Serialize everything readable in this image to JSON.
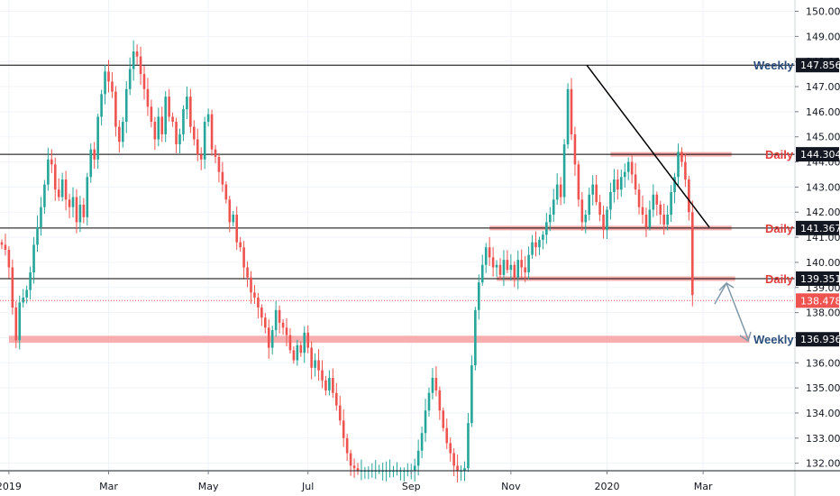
{
  "colors": {
    "up": "#26a69a",
    "down": "#ef5350",
    "zone": "#f7a0a0",
    "line": "#000000",
    "arrow": "#7f98a8",
    "weekly_text": "#2a4d7a",
    "daily_text": "#e23b3b",
    "grid": "#f0f3fa",
    "current": "#ef5350"
  },
  "chart_data": {
    "type": "candlestick",
    "title": "",
    "ylabel": "",
    "xlabel": "",
    "ylim": [
      131.7,
      150.45
    ],
    "grid": true,
    "y_ticks": [
      "132.000",
      "133.000",
      "134.000",
      "135.000",
      "136.000",
      "137.000",
      "138.000",
      "139.000",
      "140.000",
      "141.000",
      "142.000",
      "143.000",
      "144.000",
      "145.000",
      "146.000",
      "147.000",
      "148.000",
      "149.000",
      "150.000"
    ],
    "x_ticks": [
      {
        "label": "2019",
        "index": 2
      },
      {
        "label": "Mar",
        "index": 30
      },
      {
        "label": "May",
        "index": 58
      },
      {
        "label": "Jul",
        "index": 86
      },
      {
        "label": "Sep",
        "index": 115
      },
      {
        "label": "Nov",
        "index": 143
      },
      {
        "label": "2020",
        "index": 170
      },
      {
        "label": "Mar",
        "index": 197
      }
    ],
    "closes": [
      140.7,
      140.5,
      139.8,
      138.2,
      136.9,
      138.4,
      138.6,
      138.9,
      139.6,
      140.7,
      141.4,
      142.2,
      143.1,
      144.1,
      143.9,
      142.9,
      142.6,
      143.3,
      142.5,
      142.2,
      142.6,
      141.6,
      142.3,
      141.8,
      143.4,
      144.5,
      144.1,
      145.8,
      146.7,
      147.6,
      147.2,
      146.8,
      145.4,
      144.8,
      145.6,
      146.9,
      147.7,
      148.4,
      148.2,
      147.5,
      146.9,
      146.2,
      145.6,
      144.9,
      145.8,
      145.1,
      146.6,
      145.8,
      145.6,
      144.7,
      145.1,
      146.1,
      146.6,
      145.4,
      144.9,
      144.3,
      144.1,
      145.6,
      145.9,
      144.5,
      144.2,
      143.6,
      143.1,
      142.5,
      141.6,
      141.9,
      140.8,
      140.6,
      139.8,
      139.4,
      138.8,
      138.6,
      138.2,
      137.8,
      137.4,
      136.6,
      137.3,
      138.1,
      137.6,
      137.4,
      137.1,
      136.5,
      136.1,
      136.7,
      136.4,
      137.2,
      136.6,
      135.8,
      136.1,
      135.7,
      135.3,
      134.9,
      135.4,
      134.8,
      134.3,
      133.7,
      133.0,
      132.4,
      131.9,
      131.8,
      131.7,
      131.7,
      131.7,
      131.7,
      131.7,
      131.7,
      131.7,
      131.7,
      131.7,
      131.7,
      131.7,
      131.7,
      131.7,
      131.7,
      131.7,
      131.7,
      131.9,
      132.5,
      133.2,
      134.1,
      134.8,
      135.4,
      134.9,
      134.1,
      133.4,
      132.8,
      132.4,
      131.9,
      131.7,
      131.7,
      131.8,
      133.6,
      135.9,
      138.1,
      139.2,
      139.9,
      140.6,
      140.2,
      139.8,
      139.9,
      139.5,
      140.1,
      139.7,
      139.9,
      139.4,
      140.1,
      139.8,
      139.6,
      140.3,
      140.8,
      140.6,
      140.9,
      141.1,
      141.6,
      141.9,
      142.5,
      143.1,
      142.6,
      144.7,
      146.9,
      145.1,
      143.9,
      142.5,
      141.6,
      141.9,
      142.7,
      143.1,
      142.4,
      141.9,
      141.3,
      142.1,
      142.8,
      143.3,
      142.9,
      143.4,
      143.6,
      144.0,
      143.5,
      142.9,
      142.2,
      141.9,
      141.4,
      142.1,
      142.7,
      142.3,
      141.9,
      141.5,
      141.9,
      142.8,
      143.4,
      144.4,
      144.0,
      143.3,
      142.0,
      138.7
    ]
  },
  "lines": {
    "weekly_top": {
      "value": 147.856,
      "label": "147.856"
    },
    "daily_1": {
      "value": 144.304,
      "label": "144.304"
    },
    "daily_2": {
      "value": 141.367,
      "label": "141.367"
    },
    "daily_3": {
      "value": 139.351,
      "label": "139.351"
    },
    "weekly_bottom": {
      "value": 136.936,
      "label": "136.936"
    },
    "current": {
      "value": 138.478,
      "label": "138.478"
    }
  },
  "annotations": {
    "weekly": "Weekly",
    "daily": "Daily"
  }
}
